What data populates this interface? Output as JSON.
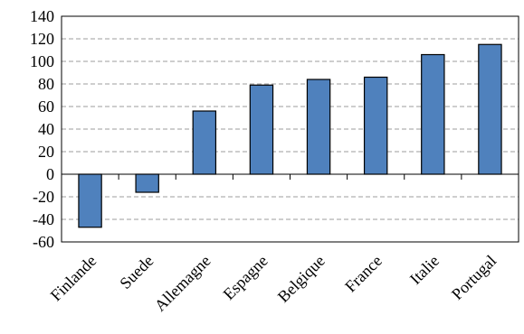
{
  "chart_data": {
    "type": "bar",
    "title": "",
    "xlabel": "",
    "ylabel": "",
    "categories": [
      "Finlande",
      "Suede",
      "Allemagne",
      "Espagne",
      "Belgique",
      "France",
      "Italie",
      "Portugal"
    ],
    "values": [
      -47,
      -16,
      56,
      79,
      84,
      86,
      106,
      115
    ],
    "ylim": [
      -60,
      140
    ],
    "yticks": [
      -60,
      -40,
      -20,
      0,
      20,
      40,
      60,
      80,
      100,
      120,
      140
    ],
    "grid": true,
    "bar_color": "#4F81BD",
    "legend": "none"
  }
}
